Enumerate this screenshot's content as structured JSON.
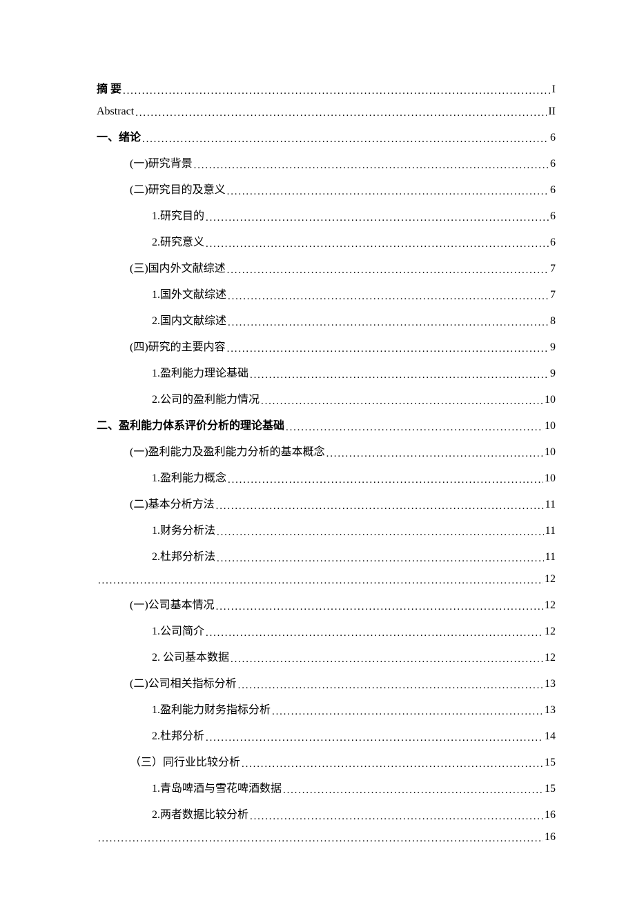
{
  "toc": {
    "entries": [
      {
        "level": 0,
        "label": "摘    要",
        "page": "I",
        "bold": true
      },
      {
        "level": 0,
        "label": "Abstract",
        "page": "II",
        "bold": false
      },
      {
        "level": 0,
        "label": "一、绪论",
        "page": "6",
        "bold": true
      },
      {
        "level": 1,
        "label": "(一)研究背景",
        "page": "6",
        "bold": false
      },
      {
        "level": 1,
        "label": "(二)研究目的及意义",
        "page": "6",
        "bold": false
      },
      {
        "level": 2,
        "label": "1.研究目的",
        "page": "6",
        "bold": false
      },
      {
        "level": 2,
        "label": "2.研究意义",
        "page": "6",
        "bold": false
      },
      {
        "level": 1,
        "label": "(三)国内外文献综述",
        "page": "7",
        "bold": false
      },
      {
        "level": 2,
        "label": "1.国外文献综述",
        "page": "7",
        "bold": false
      },
      {
        "level": 2,
        "label": "2.国内文献综述",
        "page": "8",
        "bold": false
      },
      {
        "level": 1,
        "label": "(四)研究的主要内容",
        "page": "9",
        "bold": false
      },
      {
        "level": 2,
        "label": "1.盈利能力理论基础",
        "page": "9",
        "bold": false
      },
      {
        "level": 2,
        "label": "2.公司的盈利能力情况",
        "page": "10",
        "bold": false
      },
      {
        "level": 0,
        "label": "二、盈利能力体系评价分析的理论基础",
        "page": "10",
        "bold": true
      },
      {
        "level": 1,
        "label": "(一)盈利能力及盈利能力分析的基本概念",
        "page": "10",
        "bold": false
      },
      {
        "level": 2,
        "label": "1.盈利能力概念",
        "page": "10",
        "bold": false
      },
      {
        "level": 1,
        "label": "(二)基本分析方法",
        "page": "11",
        "bold": false
      },
      {
        "level": 2,
        "label": "1.财务分析法",
        "page": "11",
        "bold": false
      },
      {
        "level": 2,
        "label": "2.杜邦分析法",
        "page": "11",
        "bold": false
      },
      {
        "level": 0,
        "label": "",
        "page": "12",
        "bold": false,
        "blank": true
      },
      {
        "level": 1,
        "label": "(一)公司基本情况",
        "page": "12",
        "bold": false
      },
      {
        "level": 2,
        "label": "1.公司简介",
        "page": "12",
        "bold": false
      },
      {
        "level": 2,
        "label": "2.  公司基本数据",
        "page": "12",
        "bold": false
      },
      {
        "level": 1,
        "label": "(二)公司相关指标分析",
        "page": "13",
        "bold": false
      },
      {
        "level": 2,
        "label": "1.盈利能力财务指标分析",
        "page": "13",
        "bold": false
      },
      {
        "level": 2,
        "label": "2.杜邦分析",
        "page": "14",
        "bold": false
      },
      {
        "level": 1,
        "label": "（三）同行业比较分析",
        "page": "15",
        "bold": false
      },
      {
        "level": 2,
        "label": "1.青岛啤酒与雪花啤酒数据",
        "page": "15",
        "bold": false
      },
      {
        "level": 2,
        "label": "2.两者数据比较分析",
        "page": "16",
        "bold": false
      },
      {
        "level": 0,
        "label": "",
        "page": "16",
        "bold": false,
        "blank": true
      }
    ]
  },
  "style": {
    "text_color": "#000000",
    "background_color": "#ffffff",
    "font_family": "SimSun",
    "base_fontsize": 16,
    "line_spacing": 14,
    "indent_level_0": 0,
    "indent_level_1": 48,
    "indent_level_2": 80,
    "dot_leader_char": "."
  }
}
